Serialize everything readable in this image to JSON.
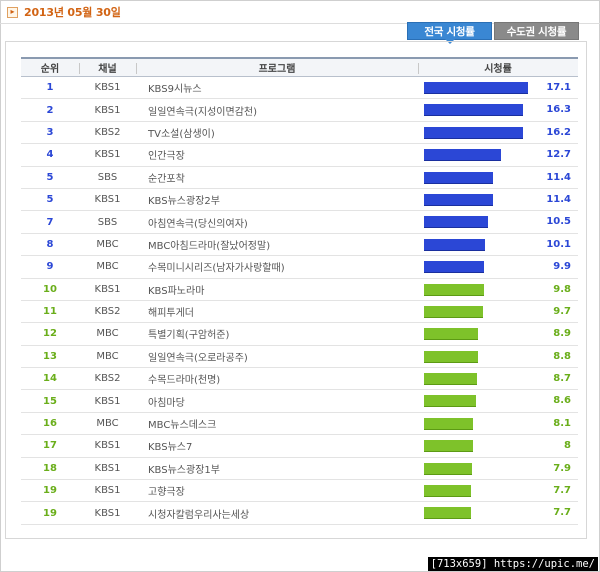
{
  "date": "2013년 05월 30일",
  "tabs": {
    "active": "전국 시청률",
    "inactive": "수도권 시청률"
  },
  "headers": {
    "rank": "순위",
    "channel": "채널",
    "program": "프로그램",
    "rating": "시청률"
  },
  "colors": {
    "top_bar": "#2b47d6",
    "rest_bar": "#7ec22a",
    "tab_active": "#3a87d3",
    "tab_inactive": "#8a8a8a",
    "date": "#d26414"
  },
  "rows": [
    {
      "rank": "1",
      "channel": "KBS1",
      "program": "KBS9시뉴스",
      "rating": "17.1",
      "value": 17.1,
      "tier": "top"
    },
    {
      "rank": "2",
      "channel": "KBS1",
      "program": "일일연속극(지성이면감천)",
      "rating": "16.3",
      "value": 16.3,
      "tier": "top"
    },
    {
      "rank": "3",
      "channel": "KBS2",
      "program": "TV소설(삼생이)",
      "rating": "16.2",
      "value": 16.2,
      "tier": "top"
    },
    {
      "rank": "4",
      "channel": "KBS1",
      "program": "인간극장",
      "rating": "12.7",
      "value": 12.7,
      "tier": "top"
    },
    {
      "rank": "5",
      "channel": "SBS",
      "program": "순간포착",
      "rating": "11.4",
      "value": 11.4,
      "tier": "top"
    },
    {
      "rank": "5",
      "channel": "KBS1",
      "program": "KBS뉴스광장2부",
      "rating": "11.4",
      "value": 11.4,
      "tier": "top"
    },
    {
      "rank": "7",
      "channel": "SBS",
      "program": "아침연속극(당신의여자)",
      "rating": "10.5",
      "value": 10.5,
      "tier": "top"
    },
    {
      "rank": "8",
      "channel": "MBC",
      "program": "MBC아침드라마(잘났어정말)",
      "rating": "10.1",
      "value": 10.1,
      "tier": "top"
    },
    {
      "rank": "9",
      "channel": "MBC",
      "program": "수목미니시리즈(남자가사랑할때)",
      "rating": "9.9",
      "value": 9.9,
      "tier": "top"
    },
    {
      "rank": "10",
      "channel": "KBS1",
      "program": "KBS파노라마",
      "rating": "9.8",
      "value": 9.8,
      "tier": "rest"
    },
    {
      "rank": "11",
      "channel": "KBS2",
      "program": "해피투게더",
      "rating": "9.7",
      "value": 9.7,
      "tier": "rest"
    },
    {
      "rank": "12",
      "channel": "MBC",
      "program": "특별기획(구암허준)",
      "rating": "8.9",
      "value": 8.9,
      "tier": "rest"
    },
    {
      "rank": "13",
      "channel": "MBC",
      "program": "일일연속극(오로라공주)",
      "rating": "8.8",
      "value": 8.8,
      "tier": "rest"
    },
    {
      "rank": "14",
      "channel": "KBS2",
      "program": "수목드라마(천명)",
      "rating": "8.7",
      "value": 8.7,
      "tier": "rest"
    },
    {
      "rank": "15",
      "channel": "KBS1",
      "program": "아침마당",
      "rating": "8.6",
      "value": 8.6,
      "tier": "rest"
    },
    {
      "rank": "16",
      "channel": "MBC",
      "program": "MBC뉴스데스크",
      "rating": "8.1",
      "value": 8.1,
      "tier": "rest"
    },
    {
      "rank": "17",
      "channel": "KBS1",
      "program": "KBS뉴스7",
      "rating": "8",
      "value": 8,
      "tier": "rest"
    },
    {
      "rank": "18",
      "channel": "KBS1",
      "program": "KBS뉴스광장1부",
      "rating": "7.9",
      "value": 7.9,
      "tier": "rest"
    },
    {
      "rank": "19",
      "channel": "KBS1",
      "program": "고향극장",
      "rating": "7.7",
      "value": 7.7,
      "tier": "rest"
    },
    {
      "rank": "19",
      "channel": "KBS1",
      "program": "시청자칼럼우리사는세상",
      "rating": "7.7",
      "value": 7.7,
      "tier": "rest"
    }
  ],
  "footer": "[713x659] https://upic.me/"
}
